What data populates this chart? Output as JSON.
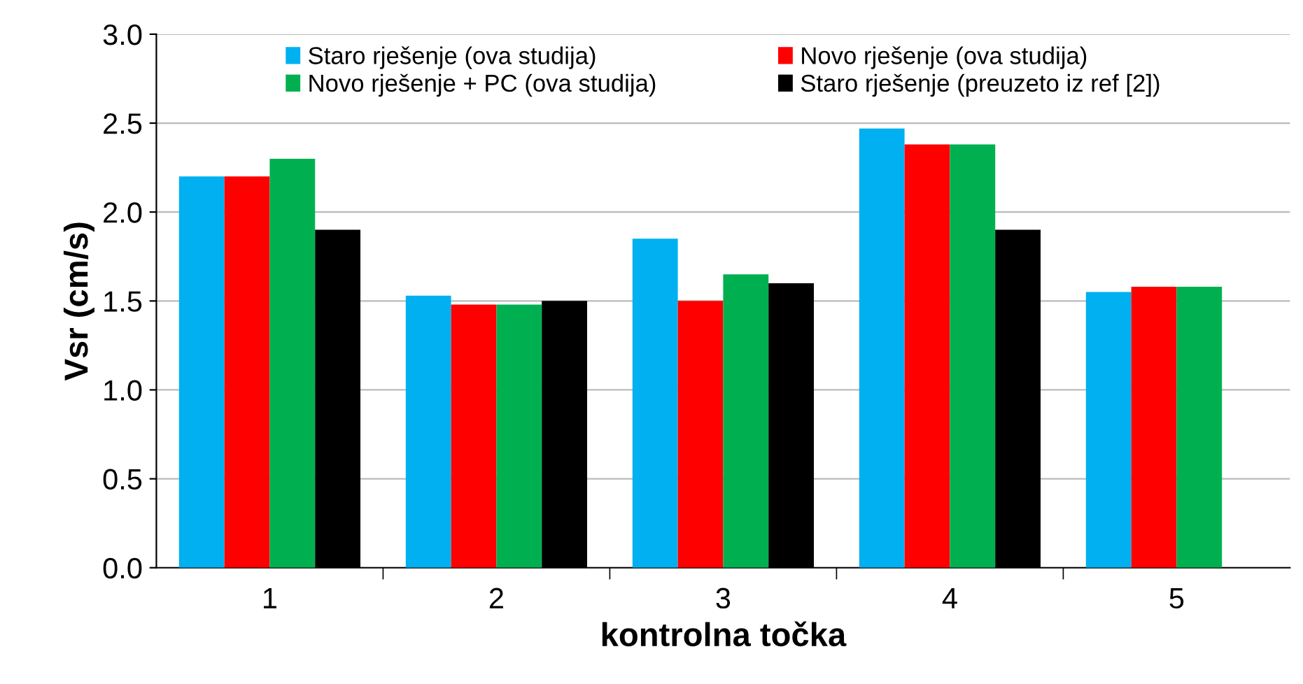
{
  "chart_data": {
    "type": "bar",
    "xlabel": "kontrolna točka",
    "ylabel": "Vsr (cm/s)",
    "categories": [
      "1",
      "2",
      "3",
      "4",
      "5"
    ],
    "series": [
      {
        "name": "Staro rješenje (ova studija)",
        "color": "#00b0f0",
        "values": [
          2.2,
          1.53,
          1.85,
          2.47,
          1.55
        ]
      },
      {
        "name": "Novo rješenje (ova studija)",
        "color": "#ff0000",
        "values": [
          2.2,
          1.48,
          1.5,
          2.38,
          1.58
        ]
      },
      {
        "name": "Novo rješenje + PC (ova studija)",
        "color": "#00b050",
        "values": [
          2.3,
          1.48,
          1.65,
          2.38,
          1.58
        ]
      },
      {
        "name": "Staro rješenje (preuzeto iz ref [2])",
        "color": "#000000",
        "values": [
          1.9,
          1.5,
          1.6,
          1.9,
          null
        ]
      }
    ],
    "ylim": [
      0,
      3
    ],
    "yticks": [
      {
        "value": 0,
        "label": "0.0"
      },
      {
        "value": 0.5,
        "label": "0.5"
      },
      {
        "value": 1,
        "label": "1.0"
      },
      {
        "value": 1.5,
        "label": "1.5"
      },
      {
        "value": 2,
        "label": "2.0"
      },
      {
        "value": 2.5,
        "label": "2.5"
      },
      {
        "value": 3,
        "label": "3.0"
      }
    ],
    "grid": "y",
    "legend": "top"
  }
}
